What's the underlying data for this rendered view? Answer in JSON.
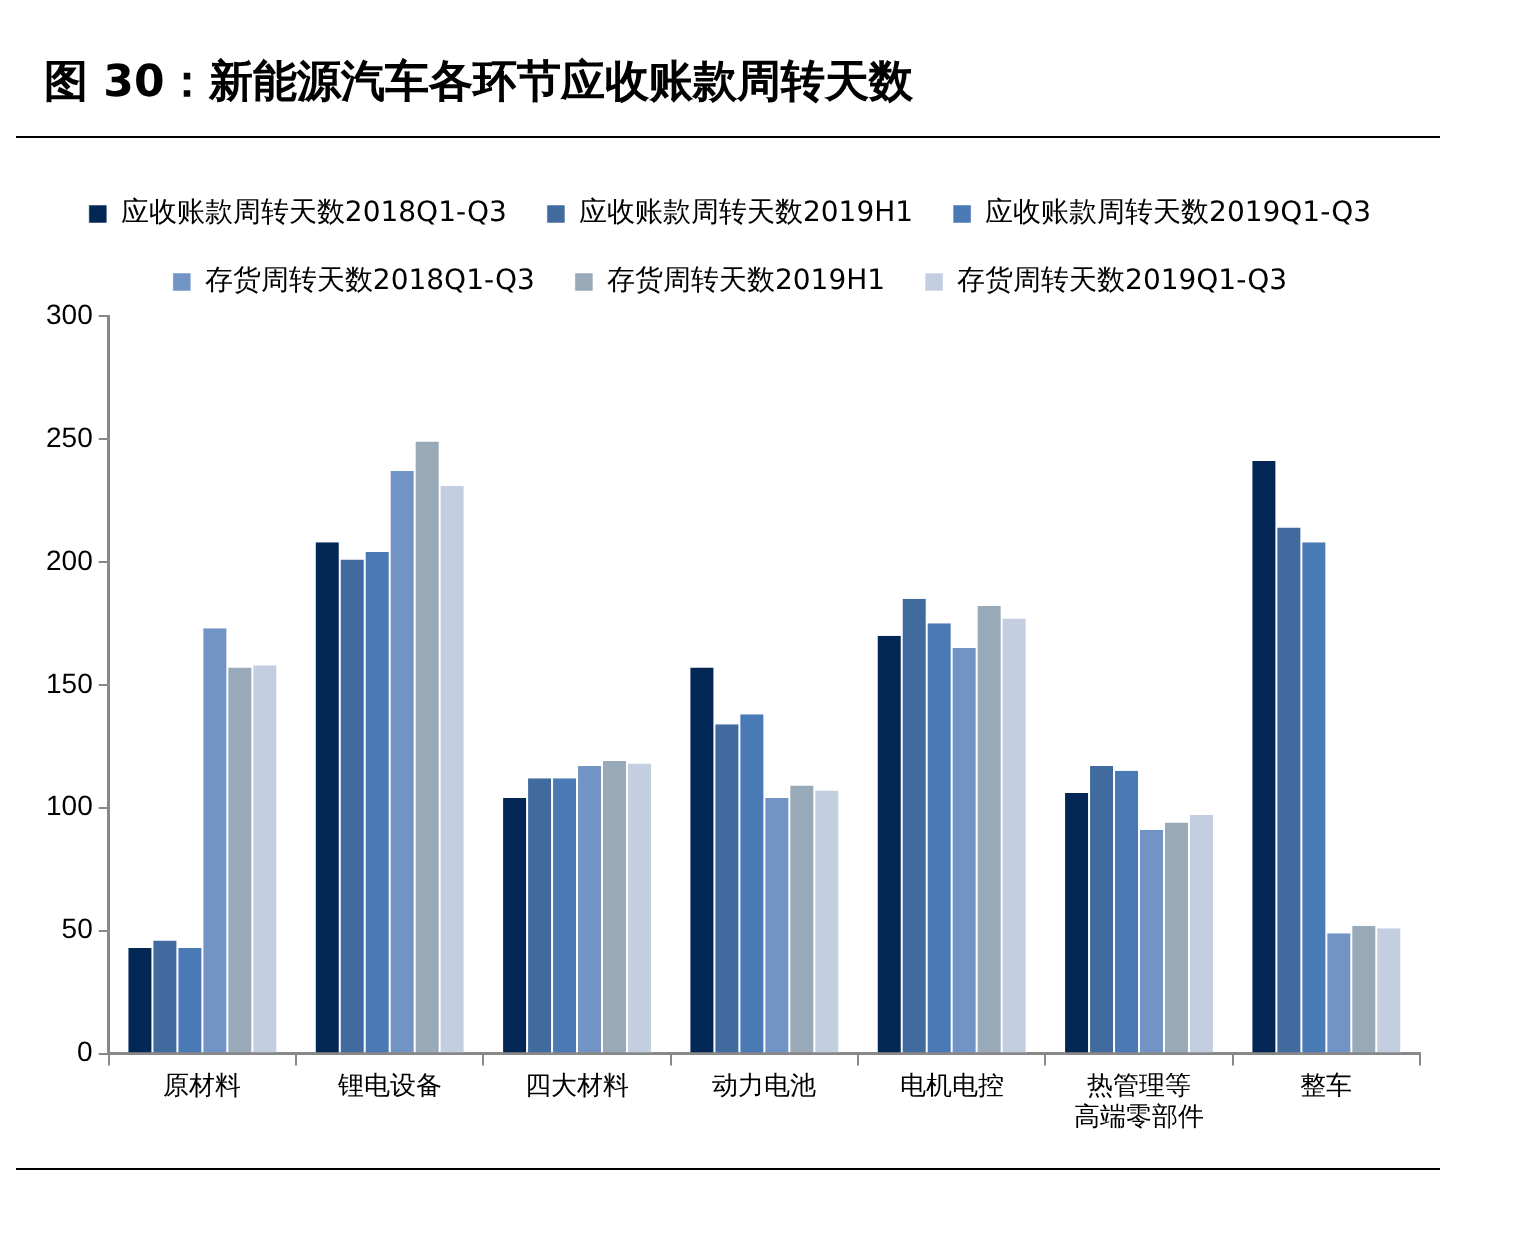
{
  "chart_data": {
    "type": "bar",
    "title": "图 30：新能源汽车各环节应收账款周转天数",
    "categories": [
      "原材料",
      "锂电设备",
      "四大材料",
      "动力电池",
      "电机电控",
      "热管理等高端零部件",
      "整车"
    ],
    "series": [
      {
        "name": "应收账款周转天数2018Q1-Q3",
        "color": "#022754",
        "values": [
          43,
          208,
          104,
          157,
          170,
          106,
          241
        ]
      },
      {
        "name": "应收账款周转天数2019H1",
        "color": "#416a9e",
        "values": [
          46,
          201,
          112,
          134,
          185,
          117,
          214
        ]
      },
      {
        "name": "应收账款周转天数2019Q1-Q3",
        "color": "#4a7ab5",
        "values": [
          43,
          204,
          112,
          138,
          175,
          115,
          208
        ]
      },
      {
        "name": "存货周转天数2018Q1-Q3",
        "color": "#7294c5",
        "values": [
          173,
          237,
          117,
          104,
          165,
          91,
          49
        ]
      },
      {
        "name": "存货周转天数2019H1",
        "color": "#98a9b8",
        "values": [
          157,
          249,
          119,
          109,
          182,
          94,
          52
        ]
      },
      {
        "name": "存货周转天数2019Q1-Q3",
        "color": "#c3cfe0",
        "values": [
          158,
          231,
          118,
          107,
          177,
          97,
          51
        ]
      }
    ],
    "ylim": [
      0,
      300
    ],
    "yticks": [
      0,
      50,
      100,
      150,
      200,
      250,
      300
    ],
    "legend": "top"
  }
}
